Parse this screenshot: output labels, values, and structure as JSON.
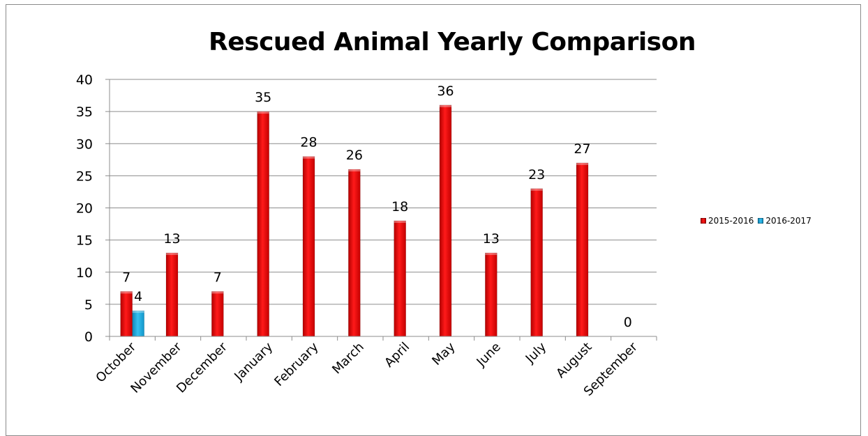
{
  "chart_data": {
    "type": "bar",
    "title": "Rescued Animal Yearly Comparison",
    "categories": [
      "October",
      "November",
      "December",
      "January",
      "February",
      "March",
      "April",
      "May",
      "June",
      "July",
      "August",
      "September"
    ],
    "series": [
      {
        "name": "2015-2016",
        "color": "#ee0000",
        "values": [
          7,
          13,
          7,
          35,
          28,
          26,
          18,
          36,
          13,
          23,
          27,
          0
        ],
        "labels": [
          "7",
          "13",
          "7",
          "35",
          "28",
          "26",
          "18",
          "36",
          "13",
          "23",
          "27",
          "0"
        ]
      },
      {
        "name": "2016-2017",
        "color": "#1aa6df",
        "values": [
          4,
          null,
          null,
          null,
          null,
          null,
          null,
          null,
          null,
          null,
          null,
          null
        ],
        "labels": [
          "4",
          "",
          "",
          "",
          "",
          "",
          "",
          "",
          "",
          "",
          "",
          ""
        ]
      }
    ],
    "ylim": [
      0,
      40
    ],
    "yticks": [
      "0",
      "5",
      "10",
      "15",
      "20",
      "25",
      "30",
      "35",
      "40"
    ],
    "grid": true,
    "legend_position": "right"
  }
}
